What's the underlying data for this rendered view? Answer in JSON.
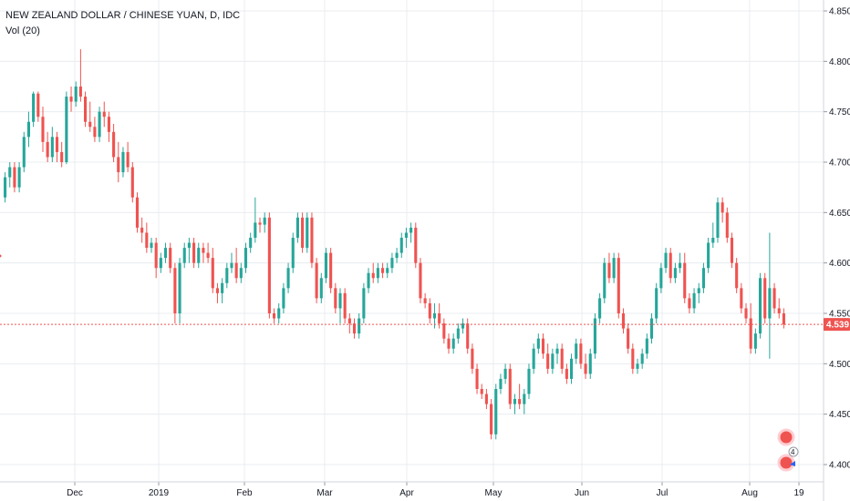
{
  "legend": {
    "symbol": "NEW ZEALAND DOLLAR / CHINESE YUAN, D, IDC",
    "indicator": "Vol (20)"
  },
  "colors": {
    "up": "#26a69a",
    "down": "#ef5350",
    "grid": "#e8ecf0",
    "axis_text": "#131722",
    "last_price": "#ef5350"
  },
  "event_badge": {
    "count": "4"
  },
  "chart_data": {
    "type": "candlestick",
    "title": "NEW ZEALAND DOLLAR / CHINESE YUAN, D, IDC",
    "ylim": [
      4.39,
      4.86
    ],
    "y_ticks": [
      "4.400",
      "4.450",
      "4.500",
      "4.550",
      "4.600",
      "4.650",
      "4.700",
      "4.750",
      "4.800",
      "4.850"
    ],
    "x_ticks": [
      "Dec",
      "2019",
      "Feb",
      "Mar",
      "Apr",
      "May",
      "Jun",
      "Jul",
      "Aug",
      "19"
    ],
    "last_price": "4.539",
    "grid": true,
    "candles": [
      [
        4.665,
        4.69,
        4.66,
        4.685
      ],
      [
        4.685,
        4.7,
        4.675,
        4.695
      ],
      [
        4.695,
        4.7,
        4.67,
        4.675
      ],
      [
        4.675,
        4.7,
        4.67,
        4.695
      ],
      [
        4.695,
        4.73,
        4.69,
        4.725
      ],
      [
        4.725,
        4.75,
        4.715,
        4.74
      ],
      [
        4.74,
        4.77,
        4.735,
        4.768
      ],
      [
        4.768,
        4.77,
        4.74,
        4.745
      ],
      [
        4.745,
        4.755,
        4.71,
        4.72
      ],
      [
        4.72,
        4.73,
        4.7,
        4.705
      ],
      [
        4.705,
        4.735,
        4.7,
        4.725
      ],
      [
        4.725,
        4.73,
        4.7,
        4.71
      ],
      [
        4.71,
        4.72,
        4.695,
        4.7
      ],
      [
        4.7,
        4.77,
        4.698,
        4.765
      ],
      [
        4.765,
        4.775,
        4.75,
        4.76
      ],
      [
        4.76,
        4.78,
        4.755,
        4.775
      ],
      [
        4.775,
        4.812,
        4.76,
        4.765
      ],
      [
        4.765,
        4.77,
        4.735,
        4.74
      ],
      [
        4.74,
        4.76,
        4.73,
        4.735
      ],
      [
        4.735,
        4.745,
        4.72,
        4.725
      ],
      [
        4.725,
        4.755,
        4.72,
        4.75
      ],
      [
        4.75,
        4.76,
        4.735,
        4.745
      ],
      [
        4.745,
        4.75,
        4.72,
        4.73
      ],
      [
        4.73,
        4.738,
        4.7,
        4.705
      ],
      [
        4.705,
        4.72,
        4.68,
        4.69
      ],
      [
        4.69,
        4.715,
        4.685,
        4.71
      ],
      [
        4.71,
        4.72,
        4.69,
        4.695
      ],
      [
        4.695,
        4.7,
        4.66,
        4.665
      ],
      [
        4.665,
        4.67,
        4.63,
        4.635
      ],
      [
        4.635,
        4.645,
        4.62,
        4.63
      ],
      [
        4.63,
        4.64,
        4.61,
        4.615
      ],
      [
        4.615,
        4.625,
        4.61,
        4.62
      ],
      [
        4.62,
        4.625,
        4.585,
        4.595
      ],
      [
        4.595,
        4.61,
        4.59,
        4.605
      ],
      [
        4.605,
        4.62,
        4.6,
        4.615
      ],
      [
        4.615,
        4.62,
        4.59,
        4.595
      ],
      [
        4.595,
        4.6,
        4.54,
        4.55
      ],
      [
        4.55,
        4.605,
        4.54,
        4.6
      ],
      [
        4.6,
        4.62,
        4.595,
        4.615
      ],
      [
        4.615,
        4.625,
        4.6,
        4.62
      ],
      [
        4.62,
        4.625,
        4.595,
        4.6
      ],
      [
        4.6,
        4.62,
        4.595,
        4.615
      ],
      [
        4.615,
        4.62,
        4.6,
        4.61
      ],
      [
        4.61,
        4.62,
        4.6,
        4.605
      ],
      [
        4.605,
        4.615,
        4.57,
        4.575
      ],
      [
        4.575,
        4.58,
        4.56,
        4.57
      ],
      [
        4.57,
        4.585,
        4.56,
        4.58
      ],
      [
        4.58,
        4.6,
        4.575,
        4.595
      ],
      [
        4.595,
        4.61,
        4.59,
        4.6
      ],
      [
        4.6,
        4.615,
        4.58,
        4.585
      ],
      [
        4.585,
        4.6,
        4.58,
        4.595
      ],
      [
        4.595,
        4.62,
        4.59,
        4.615
      ],
      [
        4.615,
        4.63,
        4.61,
        4.625
      ],
      [
        4.625,
        4.665,
        4.62,
        4.64
      ],
      [
        4.64,
        4.645,
        4.63,
        4.638
      ],
      [
        4.638,
        4.65,
        4.63,
        4.645
      ],
      [
        4.645,
        4.65,
        4.545,
        4.55
      ],
      [
        4.55,
        4.555,
        4.54,
        4.545
      ],
      [
        4.545,
        4.56,
        4.54,
        4.555
      ],
      [
        4.555,
        4.58,
        4.55,
        4.575
      ],
      [
        4.575,
        4.6,
        4.57,
        4.595
      ],
      [
        4.595,
        4.63,
        4.59,
        4.625
      ],
      [
        4.625,
        4.65,
        4.62,
        4.645
      ],
      [
        4.645,
        4.65,
        4.61,
        4.615
      ],
      [
        4.615,
        4.65,
        4.61,
        4.645
      ],
      [
        4.645,
        4.65,
        4.595,
        4.6
      ],
      [
        4.6,
        4.605,
        4.56,
        4.565
      ],
      [
        4.565,
        4.59,
        4.56,
        4.585
      ],
      [
        4.585,
        4.615,
        4.58,
        4.61
      ],
      [
        4.61,
        4.615,
        4.57,
        4.575
      ],
      [
        4.575,
        4.58,
        4.55,
        4.555
      ],
      [
        4.555,
        4.575,
        4.54,
        4.57
      ],
      [
        4.57,
        4.575,
        4.54,
        4.545
      ],
      [
        4.545,
        4.55,
        4.53,
        4.54
      ],
      [
        4.54,
        4.545,
        4.525,
        4.53
      ],
      [
        4.53,
        4.55,
        4.525,
        4.545
      ],
      [
        4.545,
        4.58,
        4.54,
        4.575
      ],
      [
        4.575,
        4.595,
        4.57,
        4.59
      ],
      [
        4.59,
        4.6,
        4.58,
        4.585
      ],
      [
        4.585,
        4.6,
        4.58,
        4.595
      ],
      [
        4.595,
        4.6,
        4.585,
        4.59
      ],
      [
        4.59,
        4.6,
        4.585,
        4.595
      ],
      [
        4.595,
        4.61,
        4.59,
        4.605
      ],
      [
        4.605,
        4.615,
        4.6,
        4.61
      ],
      [
        4.61,
        4.63,
        4.605,
        4.625
      ],
      [
        4.625,
        4.635,
        4.615,
        4.63
      ],
      [
        4.63,
        4.64,
        4.62,
        4.635
      ],
      [
        4.635,
        4.64,
        4.595,
        4.6
      ],
      [
        4.6,
        4.605,
        4.56,
        4.565
      ],
      [
        4.565,
        4.57,
        4.555,
        4.56
      ],
      [
        4.56,
        4.565,
        4.54,
        4.545
      ],
      [
        4.545,
        4.56,
        4.535,
        4.55
      ],
      [
        4.55,
        4.56,
        4.535,
        4.54
      ],
      [
        4.54,
        4.545,
        4.52,
        4.525
      ],
      [
        4.525,
        4.53,
        4.51,
        4.515
      ],
      [
        4.515,
        4.53,
        4.51,
        4.525
      ],
      [
        4.525,
        4.54,
        4.52,
        4.535
      ],
      [
        4.535,
        4.545,
        4.53,
        4.54
      ],
      [
        4.54,
        4.545,
        4.51,
        4.515
      ],
      [
        4.515,
        4.52,
        4.49,
        4.495
      ],
      [
        4.495,
        4.5,
        4.47,
        4.475
      ],
      [
        4.475,
        4.48,
        4.465,
        4.47
      ],
      [
        4.47,
        4.475,
        4.455,
        4.46
      ],
      [
        4.46,
        4.465,
        4.425,
        4.43
      ],
      [
        4.43,
        4.48,
        4.425,
        4.475
      ],
      [
        4.475,
        4.49,
        4.47,
        4.485
      ],
      [
        4.485,
        4.5,
        4.48,
        4.495
      ],
      [
        4.495,
        4.5,
        4.455,
        4.46
      ],
      [
        4.46,
        4.47,
        4.45,
        4.465
      ],
      [
        4.465,
        4.48,
        4.455,
        4.46
      ],
      [
        4.46,
        4.475,
        4.45,
        4.47
      ],
      [
        4.47,
        4.5,
        4.465,
        4.495
      ],
      [
        4.495,
        4.52,
        4.49,
        4.515
      ],
      [
        4.515,
        4.53,
        4.51,
        4.525
      ],
      [
        4.525,
        4.53,
        4.505,
        4.51
      ],
      [
        4.51,
        4.52,
        4.49,
        4.495
      ],
      [
        4.495,
        4.515,
        4.49,
        4.51
      ],
      [
        4.51,
        4.52,
        4.5,
        4.515
      ],
      [
        4.515,
        4.52,
        4.49,
        4.495
      ],
      [
        4.495,
        4.5,
        4.48,
        4.485
      ],
      [
        4.485,
        4.51,
        4.48,
        4.505
      ],
      [
        4.505,
        4.525,
        4.5,
        4.52
      ],
      [
        4.52,
        4.525,
        4.495,
        4.5
      ],
      [
        4.5,
        4.51,
        4.485,
        4.49
      ],
      [
        4.49,
        4.515,
        4.485,
        4.51
      ],
      [
        4.51,
        4.55,
        4.505,
        4.545
      ],
      [
        4.545,
        4.57,
        4.54,
        4.565
      ],
      [
        4.565,
        4.605,
        4.56,
        4.6
      ],
      [
        4.6,
        4.61,
        4.58,
        4.585
      ],
      [
        4.585,
        4.61,
        4.58,
        4.605
      ],
      [
        4.605,
        4.61,
        4.545,
        4.55
      ],
      [
        4.55,
        4.555,
        4.53,
        4.535
      ],
      [
        4.535,
        4.54,
        4.51,
        4.515
      ],
      [
        4.515,
        4.52,
        4.49,
        4.495
      ],
      [
        4.495,
        4.505,
        4.49,
        4.5
      ],
      [
        4.5,
        4.515,
        4.495,
        4.51
      ],
      [
        4.51,
        4.53,
        4.505,
        4.525
      ],
      [
        4.525,
        4.55,
        4.52,
        4.545
      ],
      [
        4.545,
        4.58,
        4.54,
        4.575
      ],
      [
        4.575,
        4.6,
        4.57,
        4.595
      ],
      [
        4.595,
        4.615,
        4.59,
        4.61
      ],
      [
        4.61,
        4.615,
        4.58,
        4.585
      ],
      [
        4.585,
        4.6,
        4.58,
        4.595
      ],
      [
        4.595,
        4.61,
        4.59,
        4.6
      ],
      [
        4.6,
        4.61,
        4.56,
        4.565
      ],
      [
        4.565,
        4.57,
        4.55,
        4.555
      ],
      [
        4.555,
        4.575,
        4.55,
        4.57
      ],
      [
        4.57,
        4.58,
        4.56,
        4.575
      ],
      [
        4.575,
        4.6,
        4.57,
        4.595
      ],
      [
        4.595,
        4.625,
        4.59,
        4.62
      ],
      [
        4.62,
        4.64,
        4.615,
        4.625
      ],
      [
        4.625,
        4.665,
        4.62,
        4.66
      ],
      [
        4.66,
        4.665,
        4.64,
        4.65
      ],
      [
        4.65,
        4.655,
        4.62,
        4.625
      ],
      [
        4.625,
        4.63,
        4.595,
        4.6
      ],
      [
        4.6,
        4.605,
        4.57,
        4.575
      ],
      [
        4.575,
        4.58,
        4.55,
        4.555
      ],
      [
        4.555,
        4.56,
        4.54,
        4.545
      ],
      [
        4.545,
        4.56,
        4.51,
        4.515
      ],
      [
        4.515,
        4.535,
        4.51,
        4.53
      ],
      [
        4.53,
        4.59,
        4.525,
        4.585
      ],
      [
        4.585,
        4.59,
        4.54,
        4.545
      ],
      [
        4.545,
        4.63,
        4.505,
        4.575
      ],
      [
        4.575,
        4.58,
        4.55,
        4.555
      ],
      [
        4.555,
        4.565,
        4.545,
        4.55
      ],
      [
        4.55,
        4.555,
        4.535,
        4.539
      ]
    ]
  }
}
